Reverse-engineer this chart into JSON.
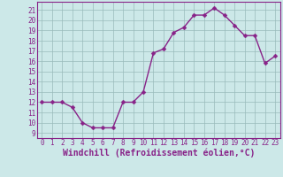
{
  "x": [
    0,
    1,
    2,
    3,
    4,
    5,
    6,
    7,
    8,
    9,
    10,
    11,
    12,
    13,
    14,
    15,
    16,
    17,
    18,
    19,
    20,
    21,
    22,
    23
  ],
  "y": [
    12,
    12,
    12,
    11.5,
    10,
    9.5,
    9.5,
    9.5,
    12,
    12,
    13,
    16.8,
    17.2,
    18.8,
    19.3,
    20.5,
    20.5,
    21.2,
    20.5,
    19.5,
    18.5,
    18.5,
    15.8,
    16.5
  ],
  "line_color": "#882288",
  "marker_color": "#882288",
  "bg_color": "#cce8e8",
  "grid_color": "#99bbbb",
  "xlabel": "Windchill (Refroidissement éolien,°C)",
  "ylim": [
    8.5,
    21.8
  ],
  "xlim": [
    -0.5,
    23.5
  ],
  "yticks": [
    9,
    10,
    11,
    12,
    13,
    14,
    15,
    16,
    17,
    18,
    19,
    20,
    21
  ],
  "xticks": [
    0,
    1,
    2,
    3,
    4,
    5,
    6,
    7,
    8,
    9,
    10,
    11,
    12,
    13,
    14,
    15,
    16,
    17,
    18,
    19,
    20,
    21,
    22,
    23
  ],
  "tick_fontsize": 5.5,
  "xlabel_fontsize": 7.0,
  "line_width": 1.0,
  "marker_size": 2.5
}
